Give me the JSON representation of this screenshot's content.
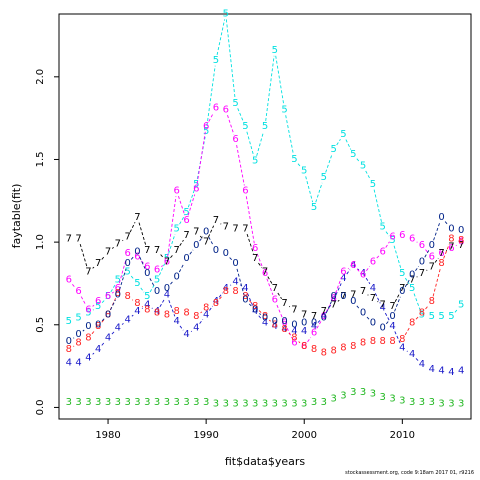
{
  "chart_data": {
    "type": "line",
    "xlabel": "fit$data$years",
    "ylabel": "faytable(fit)",
    "xlim": [
      1975,
      2017
    ],
    "ylim": [
      -0.07,
      2.38
    ],
    "x_ticks": [
      1980,
      1990,
      2000,
      2010
    ],
    "y_ticks": [
      0.0,
      0.5,
      1.0,
      1.5,
      2.0
    ],
    "x_tick_labels": [
      "1980",
      "1990",
      "2000",
      "2010"
    ],
    "y_tick_labels": [
      "0.0",
      "0.5",
      "1.0",
      "1.5",
      "2.0"
    ],
    "grid": false,
    "legend": "none",
    "x": [
      1976,
      1977,
      1978,
      1979,
      1980,
      1981,
      1982,
      1983,
      1984,
      1985,
      1986,
      1987,
      1988,
      1989,
      1990,
      1991,
      1992,
      1993,
      1994,
      1995,
      1996,
      1997,
      1998,
      1999,
      2000,
      2001,
      2002,
      2003,
      2004,
      2005,
      2006,
      2007,
      2008,
      2009,
      2010,
      2011,
      2012,
      2013,
      2014,
      2015,
      2016
    ],
    "series": [
      {
        "label": "3",
        "color": "#22b822",
        "values": [
          0.03,
          0.03,
          0.03,
          0.03,
          0.03,
          0.03,
          0.03,
          0.03,
          0.03,
          0.03,
          0.03,
          0.03,
          0.03,
          0.03,
          0.03,
          0.02,
          0.02,
          0.02,
          0.02,
          0.02,
          0.02,
          0.02,
          0.02,
          0.02,
          0.02,
          0.03,
          0.03,
          0.05,
          0.07,
          0.09,
          0.09,
          0.08,
          0.06,
          0.05,
          0.04,
          0.03,
          0.03,
          0.03,
          0.02,
          0.02,
          0.02
        ]
      },
      {
        "label": "4",
        "color": "#1818c8",
        "values": [
          0.27,
          0.27,
          0.3,
          0.35,
          0.42,
          0.48,
          0.53,
          0.58,
          0.62,
          0.58,
          0.68,
          0.52,
          0.44,
          0.48,
          0.56,
          0.64,
          0.72,
          0.76,
          0.72,
          0.58,
          0.51,
          0.49,
          0.47,
          0.46,
          0.46,
          0.49,
          0.55,
          0.65,
          0.78,
          0.86,
          0.81,
          0.72,
          0.6,
          0.49,
          0.36,
          0.32,
          0.26,
          0.23,
          0.22,
          0.21,
          0.22
        ]
      },
      {
        "label": "5",
        "color": "#00e0e0",
        "values": [
          0.52,
          0.54,
          0.57,
          0.61,
          0.67,
          0.77,
          0.82,
          0.75,
          0.67,
          0.77,
          0.9,
          1.08,
          1.18,
          1.35,
          1.67,
          2.1,
          2.38,
          1.84,
          1.7,
          1.49,
          1.7,
          2.16,
          1.8,
          1.5,
          1.43,
          1.21,
          1.39,
          1.56,
          1.65,
          1.53,
          1.46,
          1.35,
          1.09,
          1.01,
          0.81,
          0.72,
          0.56,
          0.55,
          0.55,
          0.55,
          0.62
        ]
      },
      {
        "label": "6",
        "color": "#ff00ff",
        "values": [
          0.77,
          0.7,
          0.59,
          0.64,
          0.67,
          0.72,
          0.93,
          0.91,
          0.85,
          0.83,
          0.88,
          1.31,
          1.13,
          1.32,
          1.7,
          1.81,
          1.8,
          1.62,
          1.31,
          0.96,
          0.81,
          0.65,
          0.51,
          0.39,
          0.37,
          0.45,
          0.55,
          0.66,
          0.82,
          0.86,
          0.8,
          0.88,
          0.94,
          1.03,
          1.04,
          1.02,
          0.98,
          0.91,
          0.93,
          0.96,
          1.0
        ]
      },
      {
        "label": "7",
        "color": "#000000",
        "values": [
          1.02,
          1.02,
          0.82,
          0.87,
          0.94,
          0.99,
          1.03,
          1.15,
          0.95,
          0.95,
          0.88,
          0.95,
          1.04,
          1.06,
          1.0,
          1.13,
          1.09,
          1.08,
          1.08,
          0.9,
          0.82,
          0.72,
          0.63,
          0.59,
          0.56,
          0.55,
          0.58,
          0.62,
          0.67,
          0.68,
          0.7,
          0.66,
          0.62,
          0.61,
          0.72,
          0.77,
          0.81,
          0.85,
          0.93,
          0.97,
          0.98
        ]
      },
      {
        "label": "8",
        "color": "#ff2222",
        "values": [
          0.35,
          0.39,
          0.42,
          0.49,
          0.56,
          0.69,
          0.67,
          0.63,
          0.59,
          0.57,
          0.56,
          0.58,
          0.57,
          0.55,
          0.6,
          0.63,
          0.7,
          0.7,
          0.67,
          0.61,
          0.55,
          0.5,
          0.47,
          0.42,
          0.37,
          0.35,
          0.33,
          0.34,
          0.36,
          0.37,
          0.39,
          0.4,
          0.4,
          0.4,
          0.41,
          0.51,
          0.57,
          0.64,
          0.87,
          1.02,
          1.01
        ]
      },
      {
        "label": "0",
        "color": "#002288",
        "values": [
          0.4,
          0.44,
          0.49,
          0.5,
          0.56,
          0.68,
          0.87,
          0.94,
          0.81,
          0.7,
          0.72,
          0.79,
          0.9,
          0.98,
          1.06,
          0.95,
          0.93,
          0.87,
          0.65,
          0.59,
          0.54,
          0.52,
          0.52,
          0.5,
          0.51,
          0.51,
          0.54,
          0.67,
          0.67,
          0.64,
          0.57,
          0.51,
          0.48,
          0.55,
          0.7,
          0.8,
          0.88,
          0.98,
          1.15,
          1.08,
          1.07
        ]
      }
    ]
  },
  "footer": {
    "credit": "stockassessment.org, code",
    "stamp": "9:18am 2017 01, r9216"
  }
}
